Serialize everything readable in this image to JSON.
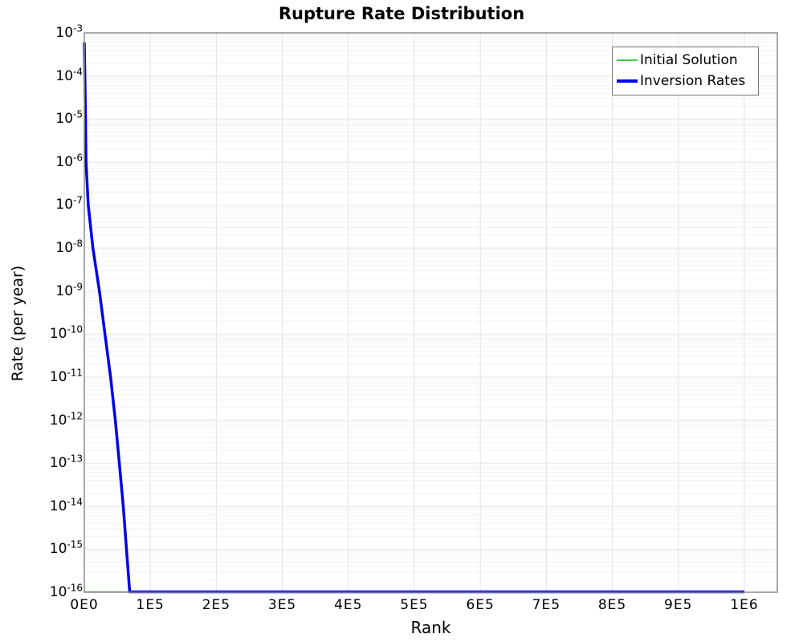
{
  "chart_data": {
    "type": "line",
    "title": "Rupture Rate Distribution",
    "xlabel": "Rank",
    "ylabel": "Rate (per year)",
    "xlim": [
      0,
      1050000
    ],
    "ylim_exp": [
      -16,
      -3
    ],
    "grid": {
      "major_color": "#e3e3e3",
      "minor_color": "#f3f3f3",
      "visible": true
    },
    "spine_color": "#8c8c8c",
    "plot_bg": "#ffffff",
    "xticks": [
      {
        "value": 0,
        "label": "0E0"
      },
      {
        "value": 100000,
        "label": "1E5"
      },
      {
        "value": 200000,
        "label": "2E5"
      },
      {
        "value": 300000,
        "label": "3E5"
      },
      {
        "value": 400000,
        "label": "4E5"
      },
      {
        "value": 500000,
        "label": "5E5"
      },
      {
        "value": 600000,
        "label": "6E5"
      },
      {
        "value": 700000,
        "label": "7E5"
      },
      {
        "value": 800000,
        "label": "8E5"
      },
      {
        "value": 900000,
        "label": "9E5"
      },
      {
        "value": 1000000,
        "label": "1E6"
      }
    ],
    "ytick_label_base": "10",
    "ytick_exponents": [
      -3,
      -4,
      -5,
      -6,
      -7,
      -8,
      -9,
      -10,
      -11,
      -12,
      -13,
      -14,
      -15,
      -16
    ],
    "legend_position": "top-right",
    "series": [
      {
        "name": "Initial Solution",
        "color": "#44cc44",
        "line_width": 1.6,
        "points": [
          [
            0,
            1e-16
          ],
          [
            1000000,
            1e-16
          ]
        ]
      },
      {
        "name": "Inversion Rates",
        "color": "#0000ee",
        "line_width": 3.5,
        "points": [
          [
            0,
            0.0006
          ],
          [
            900,
            0.0001
          ],
          [
            1800,
            1e-05
          ],
          [
            2600,
            1e-06
          ],
          [
            6000,
            1e-07
          ],
          [
            13000,
            1e-08
          ],
          [
            22900,
            1e-09
          ],
          [
            31300,
            1e-10
          ],
          [
            39800,
            1e-11
          ],
          [
            47000,
            1e-12
          ],
          [
            53000,
            1e-13
          ],
          [
            59000,
            1e-14
          ],
          [
            63900,
            1e-15
          ],
          [
            68700,
            1e-16
          ],
          [
            1000000,
            1e-16
          ]
        ]
      }
    ]
  }
}
